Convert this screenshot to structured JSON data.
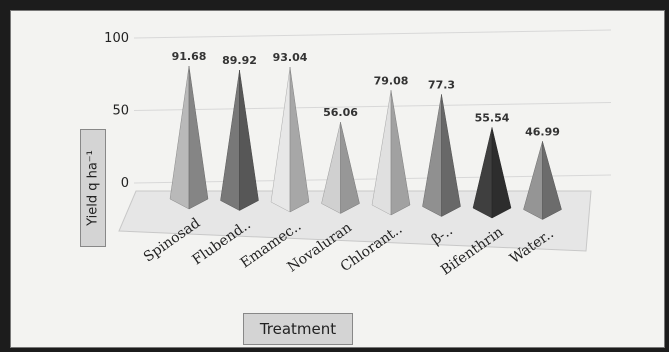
{
  "chart_data": {
    "type": "bar",
    "mark_style": "3d-pyramid",
    "categories": [
      "Spinosad",
      "Flubend..",
      "Emamec..",
      "Novaluran",
      "Chlorant..",
      "β-..",
      "Bifenthrin",
      "Water.."
    ],
    "values": [
      91.68,
      89.92,
      93.04,
      56.06,
      79.08,
      77.3,
      55.54,
      46.99
    ],
    "data_labels": [
      "91.68",
      "89.92",
      "93.04",
      "56.06",
      "79.08",
      "77.3",
      "55.54",
      "46.99"
    ],
    "y_ticks": [
      "100",
      "50",
      "0"
    ],
    "ylabel": "Yield q ha⁻¹",
    "xlabel": "Treatment",
    "ylim": [
      0,
      100
    ],
    "grid": true,
    "colors": [
      "#ababab",
      "#6f6f6f",
      "#d6d6d6",
      "#c1c1c1",
      "#cfcfcf",
      "#858585",
      "#3a3a3a",
      "#8a8a8a"
    ]
  }
}
